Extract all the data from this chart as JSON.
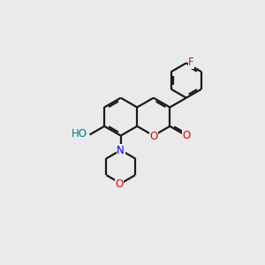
{
  "background_color": "#eaeaea",
  "bond_color": "#1a1a1a",
  "atom_colors": {
    "O": "#e00000",
    "N": "#0000e0",
    "F": "#cc00cc",
    "H": "#008080",
    "C": "#1a1a1a"
  },
  "figsize": [
    3.0,
    3.0
  ],
  "dpi": 100,
  "lw": 1.6,
  "side": 0.72
}
